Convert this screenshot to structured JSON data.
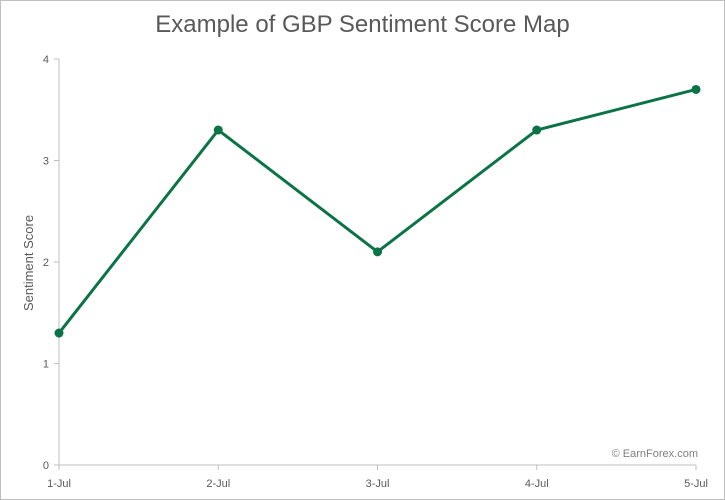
{
  "chart_data": {
    "type": "line",
    "title": "Example of GBP Sentiment Score Map",
    "xlabel": "",
    "ylabel": "Sentiment Score",
    "categories": [
      "1-Jul",
      "2-Jul",
      "3-Jul",
      "4-Jul",
      "5-Jul"
    ],
    "series": [
      {
        "values": [
          1.3,
          3.3,
          2.1,
          3.3,
          3.7
        ],
        "color": "#0b7345"
      }
    ],
    "ylim": [
      0,
      4
    ],
    "yticks": [
      "0",
      "1",
      "2",
      "3",
      "4"
    ],
    "grid": false,
    "legend": "none"
  },
  "watermark": "© EarnForex.com"
}
